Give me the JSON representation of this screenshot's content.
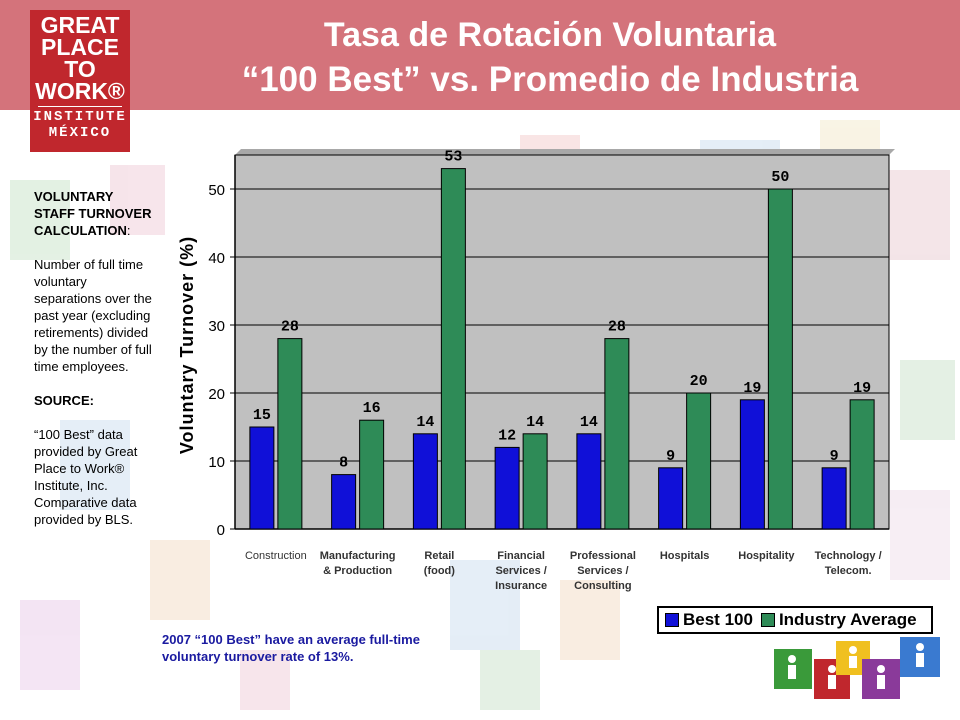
{
  "header": {
    "title_line1": "Tasa de Rotación Voluntaria",
    "title_line2": "“100 Best” vs. Promedio de Industria"
  },
  "logo": {
    "line1": "GREAT",
    "line2": "PLACE",
    "line3": "TO",
    "line4": "WORK®",
    "line5": "INSTITUTE",
    "line6": "MÉXICO"
  },
  "sidebar": {
    "heading_1": "VOLUNTARY STAFF TURNOVER CALCULATION",
    "heading_1_suffix": ":",
    "definition": "Number of full time voluntary separations over the past year (excluding retirements) divided by the number of full time employees.",
    "heading_2": "SOURCE:",
    "source_text": "“100 Best” data provided by Great Place to Work® Institute, Inc. Comparative data provided by BLS."
  },
  "note": "2007 “100 Best” have an average full-time voluntary turnover rate of 13%.",
  "colors": {
    "header_bg": "#d4737b",
    "logo_bg": "#c0272d",
    "best": "#1010d8",
    "industry": "#2e8b57",
    "plot_bg": "#c0c0c0",
    "note_text": "#1a1aa0"
  },
  "chart_data": {
    "type": "bar",
    "title": "",
    "xlabel": "",
    "ylabel": "Voluntary Turnover (%)",
    "ylim": [
      0,
      55
    ],
    "yticks": [
      0,
      10,
      20,
      30,
      40,
      50
    ],
    "grid": true,
    "legend_position": "bottom-right",
    "categories": [
      "Construction",
      "Manufacturing & Production",
      "Retail (food)",
      "Financial Services / Insurance",
      "Professional Services / Consulting",
      "Hospitals",
      "Hospitality",
      "Technology / Telecom."
    ],
    "category_lines": [
      [
        "Construction"
      ],
      [
        "Manufacturing",
        "& Production"
      ],
      [
        "Retail",
        "(food)"
      ],
      [
        "Financial",
        "Services /",
        "Insurance"
      ],
      [
        "Professional",
        "Services /",
        "Consulting"
      ],
      [
        "Hospitals"
      ],
      [
        "Hospitality"
      ],
      [
        "Technology  /",
        "Telecom."
      ]
    ],
    "series": [
      {
        "name": "Best 100",
        "values": [
          15,
          8,
          14,
          12,
          14,
          9,
          19,
          9
        ],
        "color": "#1010d8"
      },
      {
        "name": "Industry Average",
        "values": [
          28,
          16,
          53,
          14,
          28,
          20,
          50,
          19
        ],
        "color": "#2e8b57"
      }
    ]
  }
}
